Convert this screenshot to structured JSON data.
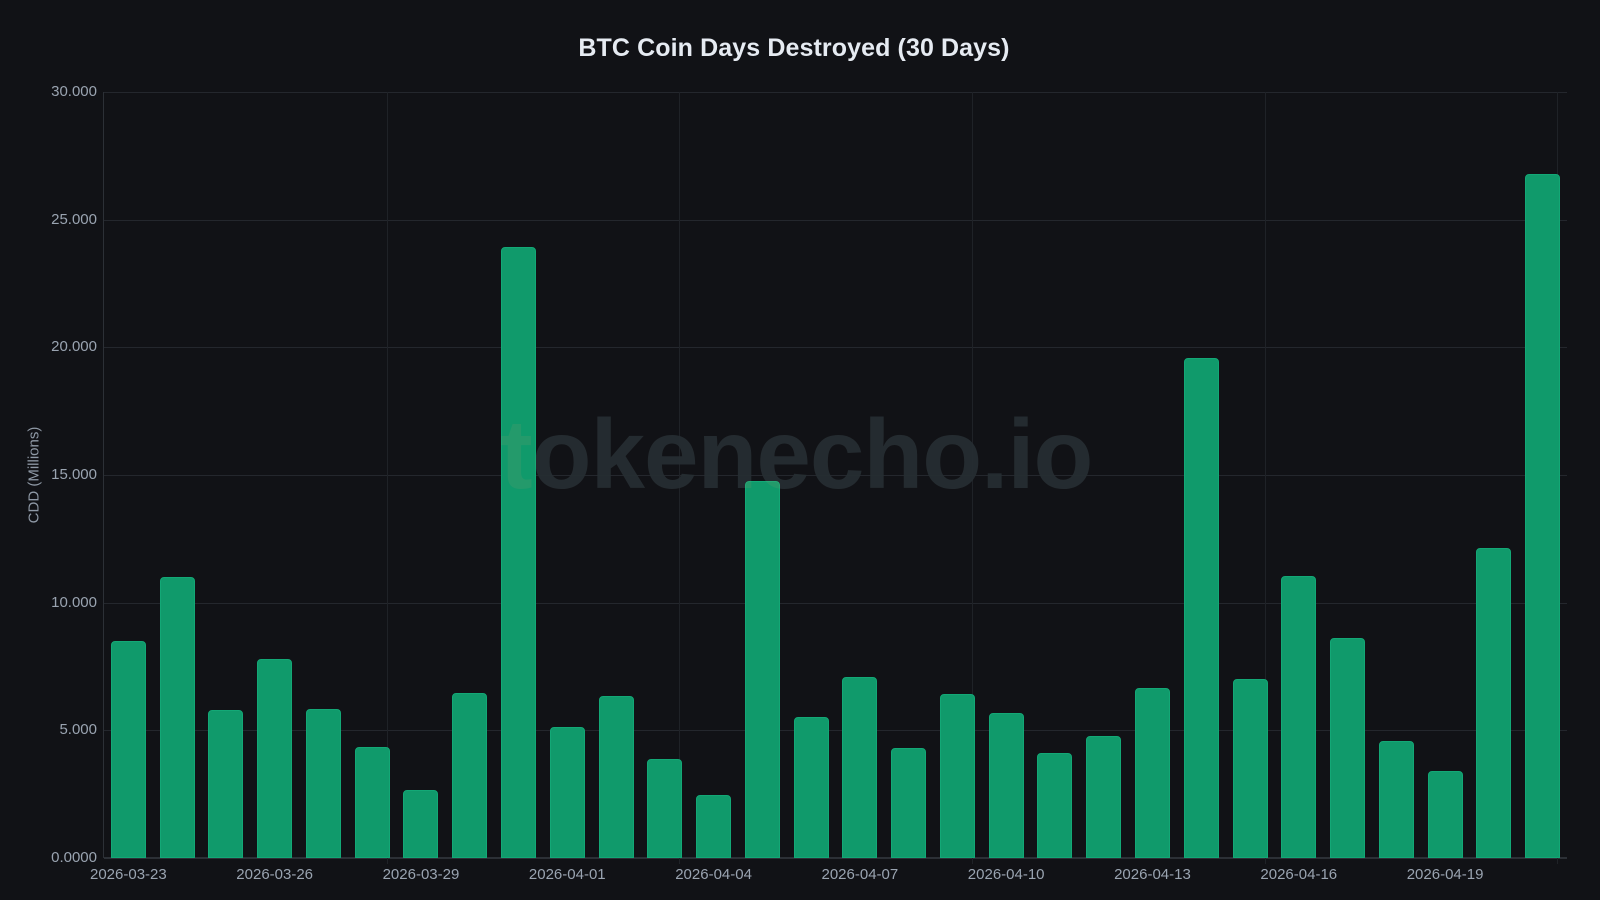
{
  "chart_data": {
    "type": "bar",
    "title": "BTC Coin Days Destroyed (30 Days)",
    "xlabel": "",
    "ylabel": "CDD (Millions)",
    "ylim": [
      0,
      30
    ],
    "grid": true,
    "legend": null,
    "watermark": "tokenecho.io",
    "bar_color": "#109a6b",
    "background_color": "#111216",
    "categories": [
      "2026-03-23",
      "2026-03-24",
      "2026-03-25",
      "2026-03-26",
      "2026-03-27",
      "2026-03-28",
      "2026-03-29",
      "2026-03-30",
      "2026-03-31",
      "2026-04-01",
      "2026-04-02",
      "2026-04-03",
      "2026-04-04",
      "2026-04-05",
      "2026-04-06",
      "2026-04-07",
      "2026-04-08",
      "2026-04-09",
      "2026-04-10",
      "2026-04-11",
      "2026-04-12",
      "2026-04-13",
      "2026-04-14",
      "2026-04-15",
      "2026-04-16",
      "2026-04-17",
      "2026-04-18",
      "2026-04-19",
      "2026-04-20",
      "2026-04-21"
    ],
    "values": [
      8.5,
      11.01,
      5.8,
      7.78,
      5.84,
      4.34,
      2.66,
      6.48,
      23.94,
      5.12,
      6.34,
      3.86,
      2.47,
      14.77,
      5.51,
      7.07,
      4.29,
      6.41,
      5.69,
      4.12,
      4.76,
      6.66,
      19.6,
      7.0,
      11.05,
      8.63,
      4.58,
      3.42,
      12.13,
      26.78
    ],
    "y_ticks": [
      {
        "value": 0,
        "label": "0.0000"
      },
      {
        "value": 5,
        "label": "5.000"
      },
      {
        "value": 10,
        "label": "10.000"
      },
      {
        "value": 15,
        "label": "15.000"
      },
      {
        "value": 20,
        "label": "20.000"
      },
      {
        "value": 25,
        "label": "25.000"
      },
      {
        "value": 30,
        "label": "30.000"
      }
    ],
    "x_ticks": [
      {
        "index": 0,
        "label": "2026-03-23"
      },
      {
        "index": 3,
        "label": "2026-03-26"
      },
      {
        "index": 6,
        "label": "2026-03-29"
      },
      {
        "index": 9,
        "label": "2026-04-01"
      },
      {
        "index": 12,
        "label": "2026-04-04"
      },
      {
        "index": 15,
        "label": "2026-04-07"
      },
      {
        "index": 18,
        "label": "2026-04-10"
      },
      {
        "index": 21,
        "label": "2026-04-13"
      },
      {
        "index": 24,
        "label": "2026-04-16"
      },
      {
        "index": 27,
        "label": "2026-04-19"
      }
    ]
  }
}
